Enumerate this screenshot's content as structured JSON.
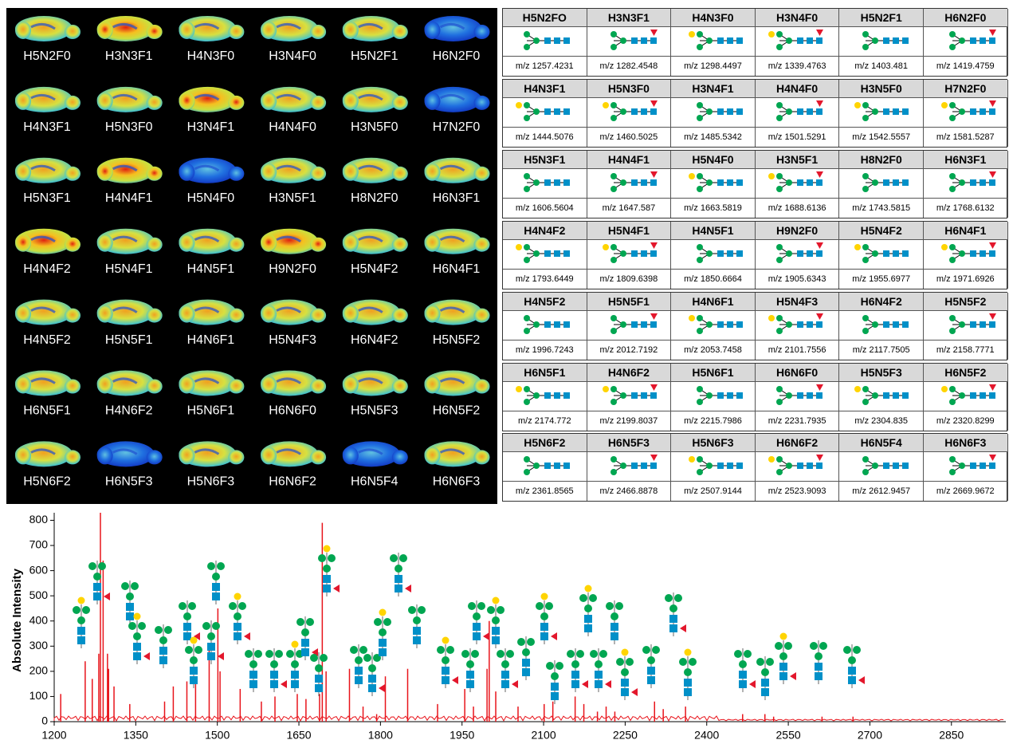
{
  "images": {
    "rows": [
      [
        "H5N2F0",
        "H3N3F1",
        "H4N3F0",
        "H3N4F0",
        "H5N2F1",
        "H6N2F0"
      ],
      [
        "H4N3F1",
        "H5N3F0",
        "H3N4F1",
        "H4N4F0",
        "H3N5F0",
        "H7N2F0"
      ],
      [
        "H5N3F1",
        "H4N4F1",
        "H5N4F0",
        "H3N5F1",
        "H8N2F0",
        "H6N3F1"
      ],
      [
        "H4N4F2",
        "H5N4F1",
        "H4N5F1",
        "H9N2F0",
        "H5N4F2",
        "H6N4F1"
      ],
      [
        "H4N5F2",
        "H5N5F1",
        "H4N6F1",
        "H5N4F3",
        "H6N4F2",
        "H5N5F2"
      ],
      [
        "H6N5F1",
        "H4N6F2",
        "H5N6F1",
        "H6N6F0",
        "H5N5F3",
        "H6N5F2"
      ],
      [
        "H5N6F2",
        "H6N5F3",
        "H5N6F3",
        "H6N6F2",
        "H6N5F4",
        "H6N6F3"
      ]
    ]
  },
  "table": {
    "blocks": [
      {
        "headers": [
          "H5N2FO",
          "H3N3F1",
          "H4N3F0",
          "H3N4F0",
          "H5N2F1",
          "H6N2F0"
        ],
        "mz": [
          "m/z 1257.4231",
          "m/z 1282.4548",
          "m/z 1298.4497",
          "m/z 1339.4763",
          "m/z 1403.481",
          "m/z 1419.4759"
        ]
      },
      {
        "headers": [
          "H4N3F1",
          "H5N3F0",
          "H3N4F1",
          "H4N4F0",
          "H3N5F0",
          "H7N2F0"
        ],
        "mz": [
          "m/z 1444.5076",
          "m/z 1460.5025",
          "m/z 1485.5342",
          "m/z 1501.5291",
          "m/z 1542.5557",
          "m/z 1581.5287"
        ]
      },
      {
        "headers": [
          "H5N3F1",
          "H4N4F1",
          "H5N4F0",
          "H3N5F1",
          "H8N2F0",
          "H6N3F1"
        ],
        "mz": [
          "m/z 1606.5604",
          "m/z 1647.587",
          "m/z 1663.5819",
          "m/z 1688.6136",
          "m/z 1743.5815",
          "m/z 1768.6132"
        ]
      },
      {
        "headers": [
          "H4N4F2",
          "H5N4F1",
          "H4N5F1",
          "H9N2F0",
          "H5N4F2",
          "H6N4F1"
        ],
        "mz": [
          "m/z 1793.6449",
          "m/z 1809.6398",
          "m/z 1850.6664",
          "m/z 1905.6343",
          "m/z 1955.6977",
          "m/z 1971.6926"
        ]
      },
      {
        "headers": [
          "H4N5F2",
          "H5N5F1",
          "H4N6F1",
          "H5N4F3",
          "H6N4F2",
          "H5N5F2"
        ],
        "mz": [
          "m/z 1996.7243",
          "m/z 2012.7192",
          "m/z 2053.7458",
          "m/z 2101.7556",
          "m/z 2117.7505",
          "m/z 2158.7771"
        ]
      },
      {
        "headers": [
          "H6N5F1",
          "H4N6F2",
          "H5N6F1",
          "H6N6F0",
          "H5N5F3",
          "H6N5F2"
        ],
        "mz": [
          "m/z 2174.772",
          "m/z 2199.8037",
          "m/z 2215.7986",
          "m/z 2231.7935",
          "m/z 2304.835",
          "m/z 2320.8299"
        ]
      },
      {
        "headers": [
          "H5N6F2",
          "H6N5F3",
          "H5N6F3",
          "H6N6F2",
          "H6N5F4",
          "H6N6F3"
        ],
        "mz": [
          "m/z 2361.8565",
          "m/z 2466.8878",
          "m/z 2507.9144",
          "m/z 2523.9093",
          "m/z 2612.9457",
          "m/z 2669.9672"
        ]
      }
    ]
  },
  "chart_data": {
    "type": "stem",
    "y_label": "Absolute Intensity",
    "color": "#e8141b",
    "x": [
      1212,
      1257,
      1270,
      1282,
      1285,
      1290,
      1298,
      1300,
      1310,
      1339,
      1403,
      1419,
      1444,
      1460,
      1485,
      1501,
      1505,
      1542,
      1581,
      1606,
      1647,
      1663,
      1688,
      1693,
      1700,
      1743,
      1768,
      1793,
      1809,
      1850,
      1905,
      1955,
      1971,
      1996,
      2000,
      2012,
      2053,
      2101,
      2117,
      2158,
      2174,
      2199,
      2215,
      2231,
      2304,
      2320,
      2361,
      2466,
      2507,
      2523,
      2612,
      2669
    ],
    "values": [
      110,
      240,
      170,
      270,
      830,
      640,
      270,
      210,
      140,
      70,
      80,
      140,
      160,
      150,
      310,
      450,
      200,
      130,
      80,
      100,
      110,
      90,
      110,
      790,
      200,
      210,
      60,
      30,
      180,
      210,
      70,
      130,
      60,
      210,
      400,
      120,
      60,
      70,
      80,
      100,
      70,
      40,
      60,
      40,
      80,
      50,
      60,
      30,
      30,
      20,
      20,
      20
    ],
    "xlim": [
      1200,
      2950
    ],
    "ylim": [
      0,
      830
    ],
    "xticks": [
      1200,
      1350,
      1500,
      1650,
      1800,
      1950,
      2100,
      2250,
      2400,
      2550,
      2700,
      2850
    ],
    "yticks": [
      0,
      100,
      200,
      300,
      400,
      500,
      600,
      700,
      800
    ]
  }
}
